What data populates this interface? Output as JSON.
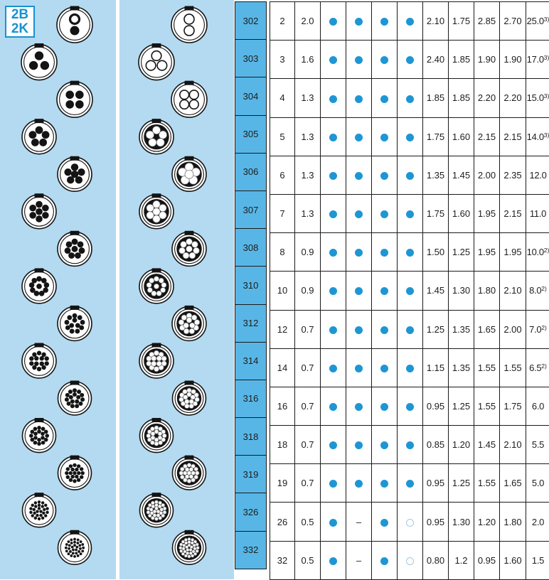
{
  "series_badge": {
    "line1": "2B",
    "line2": "2K"
  },
  "colors": {
    "panel_blue": "#b3daf0",
    "label_cell_blue": "#58b6e6",
    "accent_dot_blue": "#1e96d4",
    "open_circle_blue": "#a6cadd",
    "badge_blue": "#1792d0",
    "border_black": "#1a1a1a",
    "diagram_ink": "#141414"
  },
  "diagrams": {
    "panel1_type": "male-pin-face-view",
    "panel2_type": "female-socket-face-view",
    "pin_counts": [
      2,
      3,
      4,
      5,
      6,
      7,
      8,
      10,
      12,
      14,
      16,
      18,
      19,
      26,
      32
    ]
  },
  "table": {
    "rows": [
      {
        "model": "302",
        "contacts": "2",
        "size": "2.0",
        "marks": [
          "dot",
          "dot",
          "dot",
          "dot"
        ],
        "values": [
          "2.10",
          "1.75",
          "2.85",
          "2.70"
        ],
        "last": "25.0",
        "sup": "3)"
      },
      {
        "model": "303",
        "contacts": "3",
        "size": "1.6",
        "marks": [
          "dot",
          "dot",
          "dot",
          "dot"
        ],
        "values": [
          "2.40",
          "1.85",
          "1.90",
          "1.90"
        ],
        "last": "17.0",
        "sup": "3)"
      },
      {
        "model": "304",
        "contacts": "4",
        "size": "1.3",
        "marks": [
          "dot",
          "dot",
          "dot",
          "dot"
        ],
        "values": [
          "1.85",
          "1.85",
          "2.20",
          "2.20"
        ],
        "last": "15.0",
        "sup": "3)"
      },
      {
        "model": "305",
        "contacts": "5",
        "size": "1.3",
        "marks": [
          "dot",
          "dot",
          "dot",
          "dot"
        ],
        "values": [
          "1.75",
          "1.60",
          "2.15",
          "2.15"
        ],
        "last": "14.0",
        "sup": "3)"
      },
      {
        "model": "306",
        "contacts": "6",
        "size": "1.3",
        "marks": [
          "dot",
          "dot",
          "dot",
          "dot"
        ],
        "values": [
          "1.35",
          "1.45",
          "2.00",
          "2.35"
        ],
        "last": "12.0",
        "sup": ""
      },
      {
        "model": "307",
        "contacts": "7",
        "size": "1.3",
        "marks": [
          "dot",
          "dot",
          "dot",
          "dot"
        ],
        "values": [
          "1.75",
          "1.60",
          "1.95",
          "2.15"
        ],
        "last": "11.0",
        "sup": ""
      },
      {
        "model": "308",
        "contacts": "8",
        "size": "0.9",
        "marks": [
          "dot",
          "dot",
          "dot",
          "dot"
        ],
        "values": [
          "1.50",
          "1.25",
          "1.95",
          "1.95"
        ],
        "last": "10.0",
        "sup": "2)"
      },
      {
        "model": "310",
        "contacts": "10",
        "size": "0.9",
        "marks": [
          "dot",
          "dot",
          "dot",
          "dot"
        ],
        "values": [
          "1.45",
          "1.30",
          "1.80",
          "2.10"
        ],
        "last": "8.0",
        "sup": "2)"
      },
      {
        "model": "312",
        "contacts": "12",
        "size": "0.7",
        "marks": [
          "dot",
          "dot",
          "dot",
          "dot"
        ],
        "values": [
          "1.25",
          "1.35",
          "1.65",
          "2.00"
        ],
        "last": "7.0",
        "sup": "2)"
      },
      {
        "model": "314",
        "contacts": "14",
        "size": "0.7",
        "marks": [
          "dot",
          "dot",
          "dot",
          "dot"
        ],
        "values": [
          "1.15",
          "1.35",
          "1.55",
          "1.55"
        ],
        "last": "6.5",
        "sup": "2)"
      },
      {
        "model": "316",
        "contacts": "16",
        "size": "0.7",
        "marks": [
          "dot",
          "dot",
          "dot",
          "dot"
        ],
        "values": [
          "0.95",
          "1.25",
          "1.55",
          "1.75"
        ],
        "last": "6.0",
        "sup": ""
      },
      {
        "model": "318",
        "contacts": "18",
        "size": "0.7",
        "marks": [
          "dot",
          "dot",
          "dot",
          "dot"
        ],
        "values": [
          "0.85",
          "1.20",
          "1.45",
          "2.10"
        ],
        "last": "5.5",
        "sup": ""
      },
      {
        "model": "319",
        "contacts": "19",
        "size": "0.7",
        "marks": [
          "dot",
          "dot",
          "dot",
          "dot"
        ],
        "values": [
          "0.95",
          "1.25",
          "1.55",
          "1.65"
        ],
        "last": "5.0",
        "sup": ""
      },
      {
        "model": "326",
        "contacts": "26",
        "size": "0.5",
        "marks": [
          "dot",
          "dash",
          "dot",
          "circle"
        ],
        "values": [
          "0.95",
          "1.30",
          "1.20",
          "1.80"
        ],
        "last": "2.0",
        "sup": ""
      },
      {
        "model": "332",
        "contacts": "32",
        "size": "0.5",
        "marks": [
          "dot",
          "dash",
          "dot",
          "circle"
        ],
        "values": [
          "0.80",
          "1.2",
          "0.95",
          "1.60"
        ],
        "last": "1.5",
        "sup": ""
      }
    ]
  }
}
